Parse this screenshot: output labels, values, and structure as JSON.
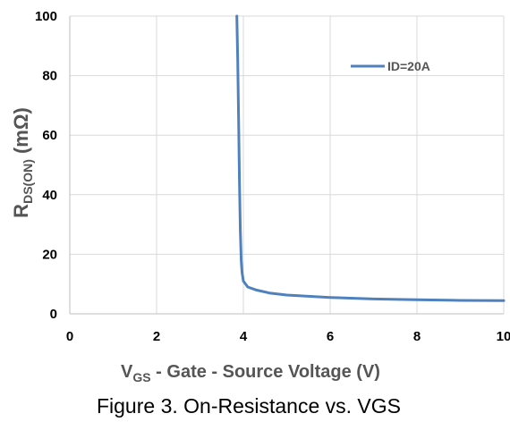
{
  "chart_data": {
    "type": "line",
    "title": "",
    "xlabel": {
      "main": "V",
      "sub": "GS",
      "rest": " - Gate - Source Voltage (V)"
    },
    "ylabel": {
      "main": "R",
      "sub": "DS(ON)",
      "rest": " (mΩ)"
    },
    "xlim": [
      0,
      10
    ],
    "ylim": [
      0,
      100
    ],
    "xticks": [
      0,
      2,
      4,
      6,
      8,
      10
    ],
    "yticks": [
      0,
      20,
      40,
      60,
      80,
      100
    ],
    "grid": true,
    "legend_position": "top-right",
    "series": [
      {
        "name": "ID=20A",
        "color": "#4F81BD",
        "points": [
          [
            3.85,
            100
          ],
          [
            3.87,
            85
          ],
          [
            3.89,
            65
          ],
          [
            3.91,
            45
          ],
          [
            3.93,
            28
          ],
          [
            3.95,
            18
          ],
          [
            3.97,
            14
          ],
          [
            4.0,
            11
          ],
          [
            4.1,
            9
          ],
          [
            4.3,
            8
          ],
          [
            4.6,
            7
          ],
          [
            5.0,
            6.3
          ],
          [
            6.0,
            5.5
          ],
          [
            7.0,
            5.0
          ],
          [
            8.0,
            4.7
          ],
          [
            9.0,
            4.5
          ],
          [
            10.0,
            4.4
          ]
        ]
      }
    ],
    "caption": "Figure 3. On-Resistance vs. VGS"
  }
}
